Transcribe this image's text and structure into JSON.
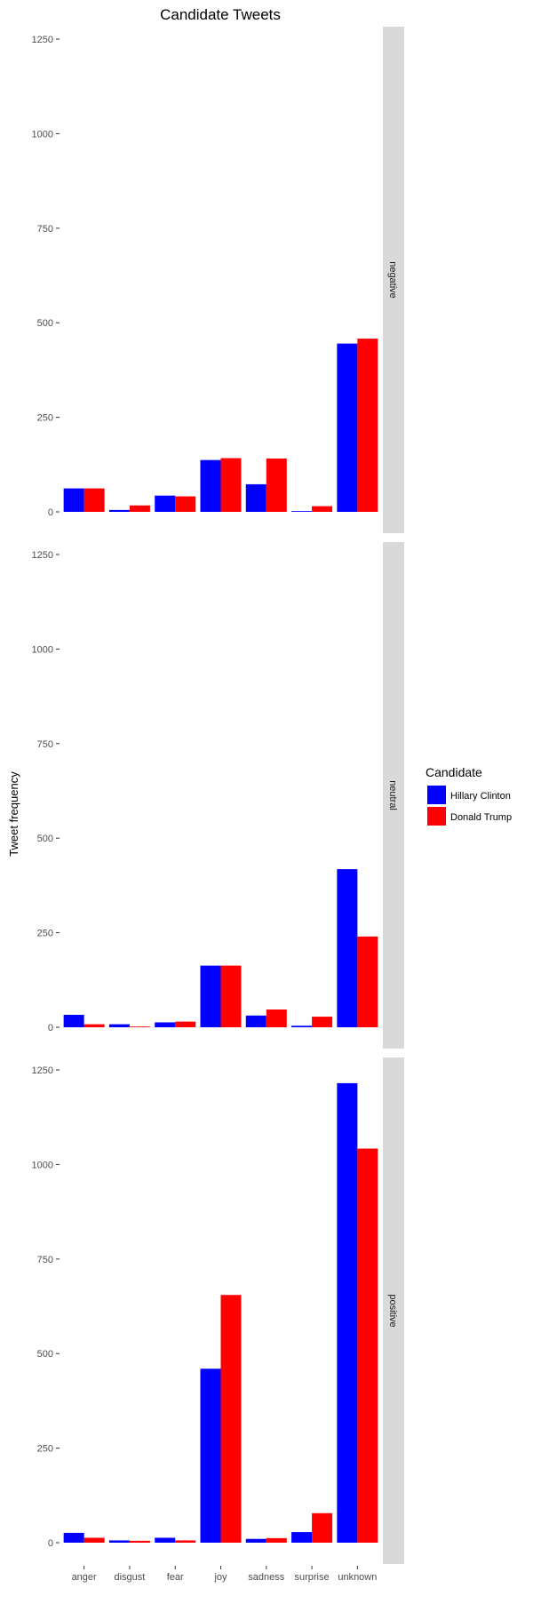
{
  "chart_data": {
    "type": "bar",
    "title": "Candidate Tweets",
    "xlabel": "",
    "ylabel": "Tweet frequency",
    "ylim": [
      0,
      1250
    ],
    "yticks": [
      "0",
      "250",
      "500",
      "750",
      "1000",
      "1250"
    ],
    "grid": false,
    "categories": [
      "anger",
      "disgust",
      "fear",
      "joy",
      "sadness",
      "surprise",
      "unknown"
    ],
    "legend": {
      "title": "Candidate",
      "placement": "right",
      "entries": [
        {
          "name": "Hillary Clinton",
          "color": "#0000ff"
        },
        {
          "name": "Donald Trump",
          "color": "#ff0000"
        }
      ]
    },
    "facets": [
      {
        "label": "negative",
        "series": [
          {
            "name": "Hillary Clinton",
            "color": "#0000ff",
            "values": [
              62,
              5,
              43,
              137,
              73,
              2,
              445
            ]
          },
          {
            "name": "Donald Trump",
            "color": "#ff0000",
            "values": [
              62,
              17,
              41,
              142,
              141,
              15,
              458
            ]
          }
        ]
      },
      {
        "label": "neutral",
        "series": [
          {
            "name": "Hillary Clinton",
            "color": "#0000ff",
            "values": [
              33,
              8,
              13,
              163,
              31,
              4,
              418
            ]
          },
          {
            "name": "Donald Trump",
            "color": "#ff0000",
            "values": [
              8,
              2,
              15,
              163,
              47,
              28,
              240
            ]
          }
        ]
      },
      {
        "label": "positive",
        "series": [
          {
            "name": "Hillary Clinton",
            "color": "#0000ff",
            "values": [
              26,
              6,
              13,
              460,
              10,
              28,
              1215
            ]
          },
          {
            "name": "Donald Trump",
            "color": "#ff0000",
            "values": [
              13,
              5,
              6,
              655,
              12,
              78,
              1042
            ]
          }
        ]
      }
    ]
  }
}
